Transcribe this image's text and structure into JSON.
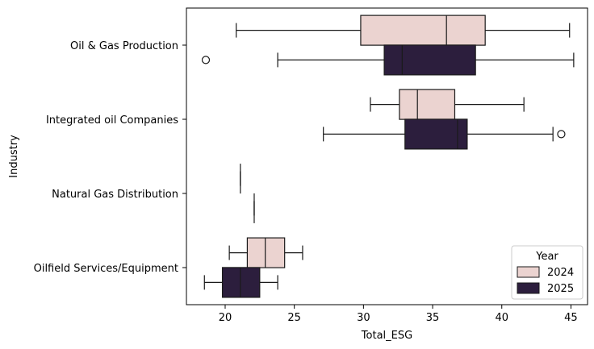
{
  "chart_data": {
    "type": "boxplot",
    "orientation": "horizontal",
    "xlabel": "Total_ESG",
    "ylabel": "Industry",
    "xlim": [
      17.2,
      46.2
    ],
    "xticks": [
      20,
      25,
      30,
      35,
      40,
      45
    ],
    "categories": [
      "Oil & Gas Production",
      "Integrated oil Companies",
      "Natural Gas Distribution",
      "Oilfield Services/Equipment"
    ],
    "legend": {
      "title": "Year",
      "position": "lower-right"
    },
    "series": [
      {
        "name": "2024",
        "color": "#ebd3d0",
        "boxes": [
          {
            "min": 20.8,
            "q1": 29.8,
            "median": 36.0,
            "q3": 38.8,
            "max": 44.9,
            "outliers": []
          },
          {
            "min": 30.5,
            "q1": 32.6,
            "median": 33.9,
            "q3": 36.6,
            "max": 41.6,
            "outliers": []
          },
          {
            "min": 21.1,
            "q1": 21.1,
            "median": 21.1,
            "q3": 21.1,
            "max": 21.1,
            "outliers": []
          },
          {
            "min": 20.3,
            "q1": 21.6,
            "median": 22.9,
            "q3": 24.3,
            "max": 25.6,
            "outliers": []
          }
        ]
      },
      {
        "name": "2025",
        "color": "#2c1e3d",
        "boxes": [
          {
            "min": 23.8,
            "q1": 31.5,
            "median": 32.8,
            "q3": 38.1,
            "max": 45.2,
            "outliers": [
              18.6
            ]
          },
          {
            "min": 27.1,
            "q1": 33.0,
            "median": 36.8,
            "q3": 37.5,
            "max": 43.7,
            "outliers": [
              44.3
            ]
          },
          {
            "min": 22.1,
            "q1": 22.1,
            "median": 22.1,
            "q3": 22.1,
            "max": 22.1,
            "outliers": []
          },
          {
            "min": 18.5,
            "q1": 19.8,
            "median": 21.1,
            "q3": 22.5,
            "max": 23.8,
            "outliers": []
          }
        ]
      }
    ]
  }
}
